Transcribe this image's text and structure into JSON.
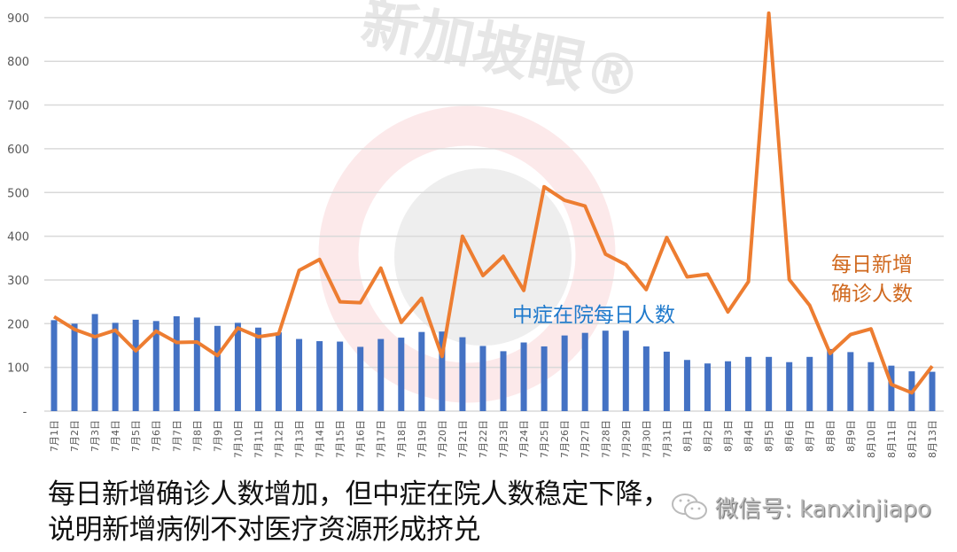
{
  "watermark": {
    "text": "新加坡眼",
    "mark": "®"
  },
  "caption": {
    "line1": "每日新增确诊人数增加，但中症在院人数稳定下降，",
    "line2": "说明新增病例不对医疗资源形成挤兑"
  },
  "wechat": {
    "icon": "wechat-icon",
    "text": "微信号: kanxinjiapo"
  },
  "colors": {
    "bar": "#4472C4",
    "line": "#ED7D31",
    "bar_label": "#1F7ACC",
    "line_label": "#D0691F",
    "grid": "#D9D9D9",
    "tick": "#595959"
  },
  "chart_data": {
    "type": "bar",
    "title": "",
    "xlabel": "",
    "ylabel": "",
    "ylim": [
      0,
      900
    ],
    "yticks": [
      "-",
      "100",
      "200",
      "300",
      "400",
      "500",
      "600",
      "700",
      "800",
      "900"
    ],
    "grid": true,
    "legend": "inline annotations",
    "categories": [
      "7月1日",
      "7月2日",
      "7月3日",
      "7月4日",
      "7月5日",
      "7月6日",
      "7月7日",
      "7月8日",
      "7月9日",
      "7月10日",
      "7月11日",
      "7月12日",
      "7月13日",
      "7月14日",
      "7月15日",
      "7月16日",
      "7月17日",
      "7月18日",
      "7月19日",
      "7月20日",
      "7月21日",
      "7月22日",
      "7月23日",
      "7月24日",
      "7月25日",
      "7月26日",
      "7月27日",
      "7月28日",
      "7月29日",
      "7月30日",
      "7月31日",
      "8月1日",
      "8月2日",
      "8月3日",
      "8月4日",
      "8月5日",
      "8月6日",
      "8月7日",
      "8月8日",
      "8月9日",
      "8月10日",
      "8月11日",
      "8月12日",
      "8月13日"
    ],
    "series": [
      {
        "name": "中症在院每日人数",
        "type": "bar",
        "values": [
          208,
          200,
          222,
          202,
          209,
          206,
          217,
          214,
          195,
          202,
          191,
          180,
          165,
          160,
          159,
          147,
          165,
          168,
          181,
          182,
          169,
          149,
          137,
          157,
          148,
          173,
          179,
          184,
          184,
          148,
          136,
          117,
          109,
          114,
          124,
          124,
          112,
          124,
          142,
          135,
          112,
          104,
          91,
          90
        ]
      },
      {
        "name": "每日新增确诊人数",
        "type": "line",
        "values": [
          216,
          187,
          170,
          185,
          138,
          183,
          157,
          158,
          127,
          190,
          170,
          177,
          322,
          347,
          250,
          248,
          327,
          203,
          258,
          125,
          400,
          310,
          354,
          276,
          513,
          482,
          469,
          359,
          335,
          278,
          397,
          307,
          313,
          227,
          296,
          910,
          301,
          242,
          132,
          175,
          188,
          61,
          42,
          103
        ]
      }
    ],
    "annotations": [
      {
        "text": "中症在院每日人数",
        "series": "bar"
      },
      {
        "text": "每日新增\n确诊人数",
        "series": "line"
      }
    ]
  }
}
